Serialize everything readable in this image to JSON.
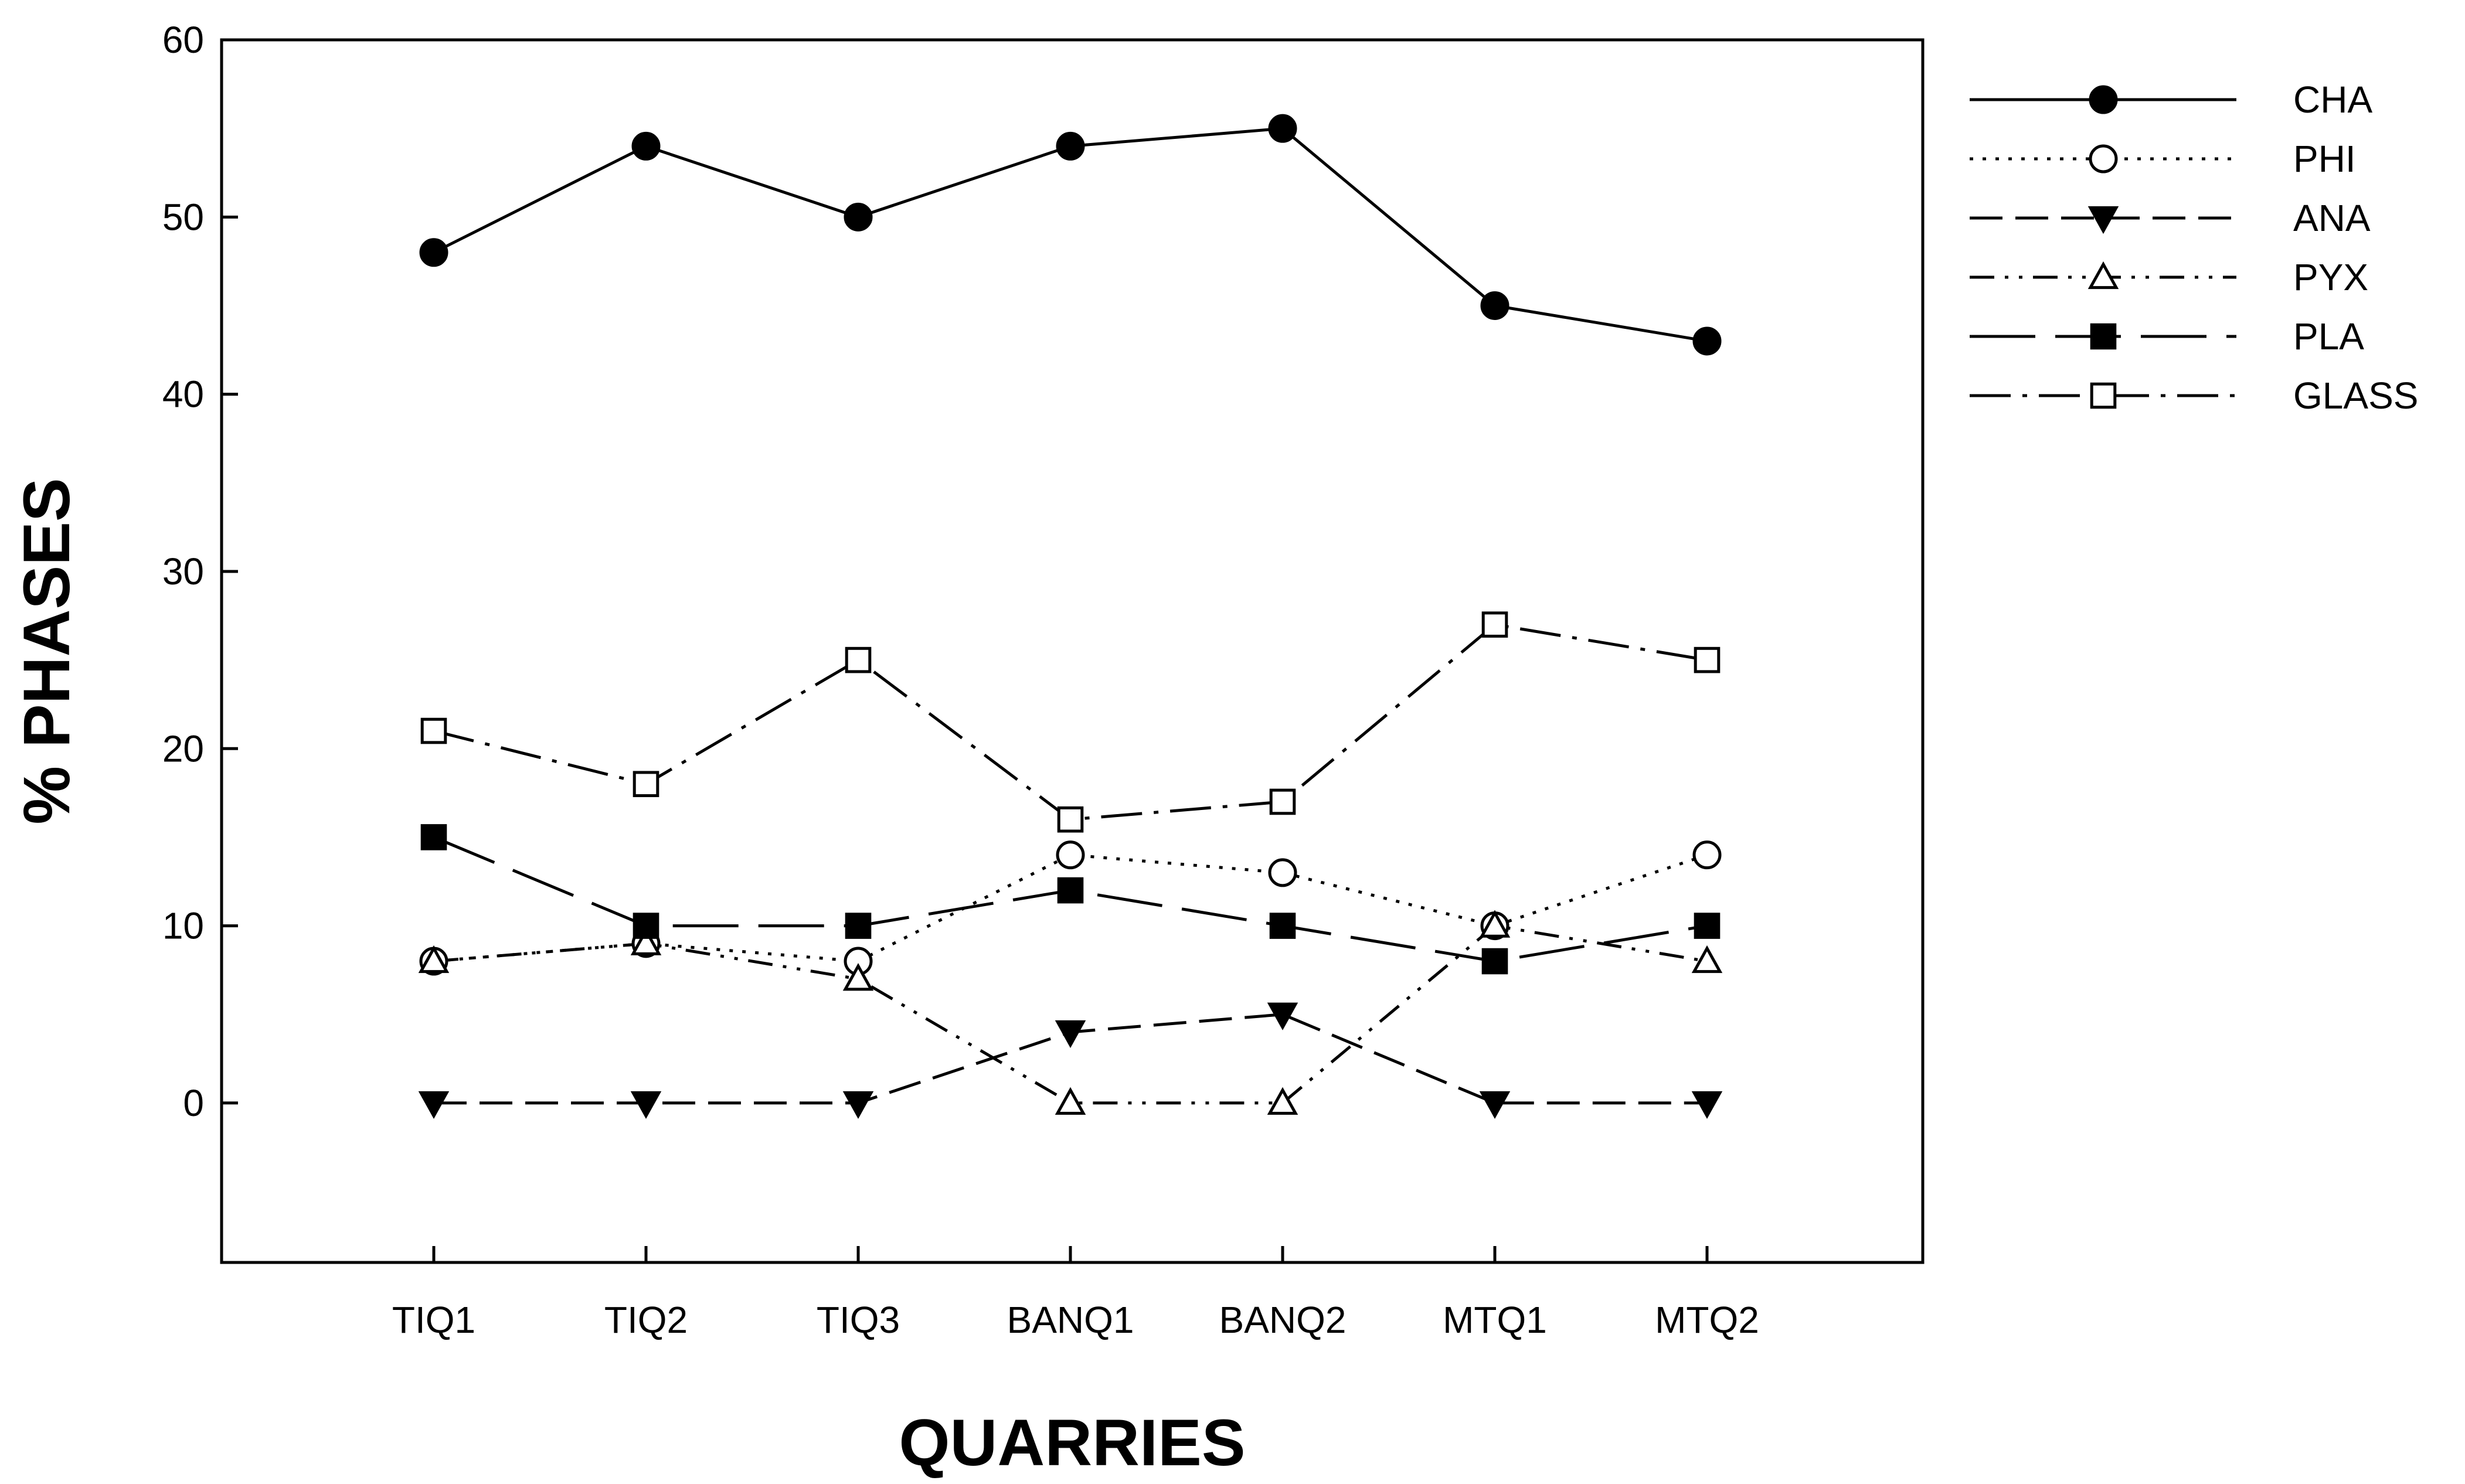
{
  "chart_data": {
    "type": "line",
    "title": "",
    "xlabel": "QUARRIES",
    "ylabel": "% PHASES",
    "categories": [
      "TIQ1",
      "TIQ2",
      "TIQ3",
      "BANQ1",
      "BANQ2",
      "MTQ1",
      "MTQ2"
    ],
    "ylim": [
      -9,
      60
    ],
    "yticks": [
      0,
      10,
      20,
      30,
      40,
      50,
      60
    ],
    "grid": false,
    "legend_position": "right",
    "series": [
      {
        "name": "CHA",
        "values": [
          48,
          54,
          50,
          54,
          55,
          45,
          43
        ],
        "marker": "circle-filled",
        "line": "solid"
      },
      {
        "name": "PHI",
        "values": [
          8,
          9,
          8,
          14,
          13,
          10,
          14
        ],
        "marker": "circle-open",
        "line": "dotted"
      },
      {
        "name": "ANA",
        "values": [
          0,
          0,
          0,
          4,
          5,
          0,
          0
        ],
        "marker": "triangle-down-filled",
        "line": "dashed"
      },
      {
        "name": "PYX",
        "values": [
          8,
          9,
          7,
          0,
          0,
          10,
          8
        ],
        "marker": "triangle-up-open",
        "line": "dash-dot-dot"
      },
      {
        "name": "PLA",
        "values": [
          15,
          10,
          10,
          12,
          10,
          8,
          10
        ],
        "marker": "square-filled",
        "line": "long-dash"
      },
      {
        "name": "GLASS",
        "values": [
          21,
          18,
          25,
          16,
          17,
          27,
          25
        ],
        "marker": "square-open",
        "line": "dash-dot"
      }
    ]
  }
}
